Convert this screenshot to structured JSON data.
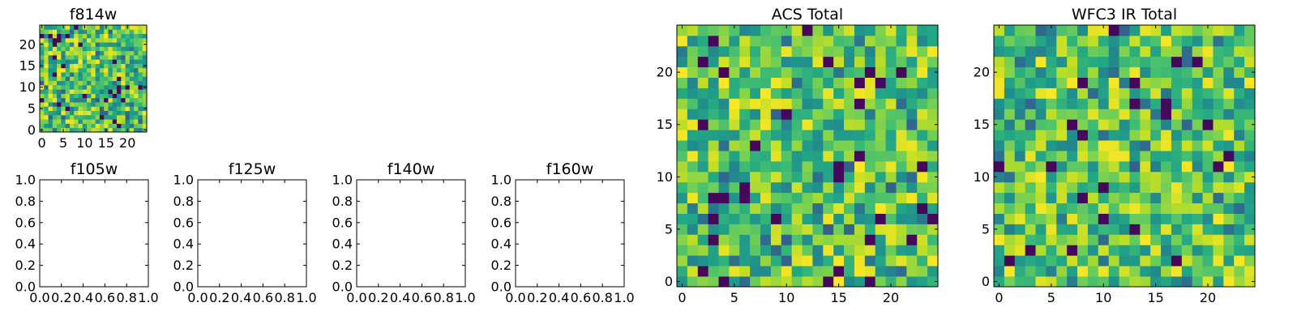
{
  "chart_data": [
    {
      "id": "f814w",
      "type": "heatmap",
      "title": "f814w",
      "xlim": [
        -0.5,
        24.5
      ],
      "ylim": [
        -0.5,
        24.5
      ],
      "xticks": [
        0,
        5,
        10,
        15,
        20
      ],
      "xtick_labels": [
        "0",
        "5",
        "10",
        "15",
        "20"
      ],
      "yticks": [
        0,
        5,
        10,
        15,
        20
      ],
      "ytick_labels": [
        "0",
        "5",
        "10",
        "15",
        "20"
      ],
      "rows": 25,
      "cols": 25,
      "colormap": "viridis",
      "seed": 11
    },
    {
      "id": "f105w",
      "type": "empty",
      "title": "f105w",
      "xlim": [
        0,
        1
      ],
      "ylim": [
        0,
        1
      ],
      "xticks": [
        0,
        0.2,
        0.4,
        0.6,
        0.8,
        1.0
      ],
      "xtick_labels": [
        "0.0",
        "0.2",
        "0.4",
        "0.6",
        "0.8",
        "1.0"
      ],
      "yticks": [
        0,
        0.2,
        0.4,
        0.6,
        0.8,
        1.0
      ],
      "ytick_labels": [
        "0.0",
        "0.2",
        "0.4",
        "0.6",
        "0.8",
        "1.0"
      ]
    },
    {
      "id": "f125w",
      "type": "empty",
      "title": "f125w",
      "xlim": [
        0,
        1
      ],
      "ylim": [
        0,
        1
      ],
      "xticks": [
        0,
        0.2,
        0.4,
        0.6,
        0.8,
        1.0
      ],
      "xtick_labels": [
        "0.0",
        "0.2",
        "0.4",
        "0.6",
        "0.8",
        "1.0"
      ],
      "yticks": [
        0,
        0.2,
        0.4,
        0.6,
        0.8,
        1.0
      ],
      "ytick_labels": [
        "0.0",
        "0.2",
        "0.4",
        "0.6",
        "0.8",
        "1.0"
      ]
    },
    {
      "id": "f140w",
      "type": "empty",
      "title": "f140w",
      "xlim": [
        0,
        1
      ],
      "ylim": [
        0,
        1
      ],
      "xticks": [
        0,
        0.2,
        0.4,
        0.6,
        0.8,
        1.0
      ],
      "xtick_labels": [
        "0.0",
        "0.2",
        "0.4",
        "0.6",
        "0.8",
        "1.0"
      ],
      "yticks": [
        0,
        0.2,
        0.4,
        0.6,
        0.8,
        1.0
      ],
      "ytick_labels": [
        "0.0",
        "0.2",
        "0.4",
        "0.6",
        "0.8",
        "1.0"
      ]
    },
    {
      "id": "f160w",
      "type": "empty",
      "title": "f160w",
      "xlim": [
        0,
        1
      ],
      "ylim": [
        0,
        1
      ],
      "xticks": [
        0,
        0.2,
        0.4,
        0.6,
        0.8,
        1.0
      ],
      "xtick_labels": [
        "0.0",
        "0.2",
        "0.4",
        "0.6",
        "0.8",
        "1.0"
      ],
      "yticks": [
        0,
        0.2,
        0.4,
        0.6,
        0.8,
        1.0
      ],
      "ytick_labels": [
        "0.0",
        "0.2",
        "0.4",
        "0.6",
        "0.8",
        "1.0"
      ]
    },
    {
      "id": "acs-total",
      "type": "heatmap",
      "title": "ACS Total",
      "xlim": [
        -0.5,
        24.5
      ],
      "ylim": [
        -0.5,
        24.5
      ],
      "xticks": [
        0,
        5,
        10,
        15,
        20
      ],
      "xtick_labels": [
        "0",
        "5",
        "10",
        "15",
        "20"
      ],
      "yticks": [
        0,
        5,
        10,
        15,
        20
      ],
      "ytick_labels": [
        "0",
        "5",
        "10",
        "15",
        "20"
      ],
      "rows": 25,
      "cols": 25,
      "colormap": "viridis",
      "seed": 47
    },
    {
      "id": "wfc3-ir-total",
      "type": "heatmap",
      "title": "WFC3 IR Total",
      "xlim": [
        -0.5,
        24.5
      ],
      "ylim": [
        -0.5,
        24.5
      ],
      "xticks": [
        0,
        5,
        10,
        15,
        20
      ],
      "xtick_labels": [
        "0",
        "5",
        "10",
        "15",
        "20"
      ],
      "yticks": [
        0,
        5,
        10,
        15,
        20
      ],
      "ytick_labels": [
        "0",
        "5",
        "10",
        "15",
        "20"
      ],
      "rows": 25,
      "cols": 25,
      "colormap": "viridis",
      "seed": 83
    }
  ]
}
